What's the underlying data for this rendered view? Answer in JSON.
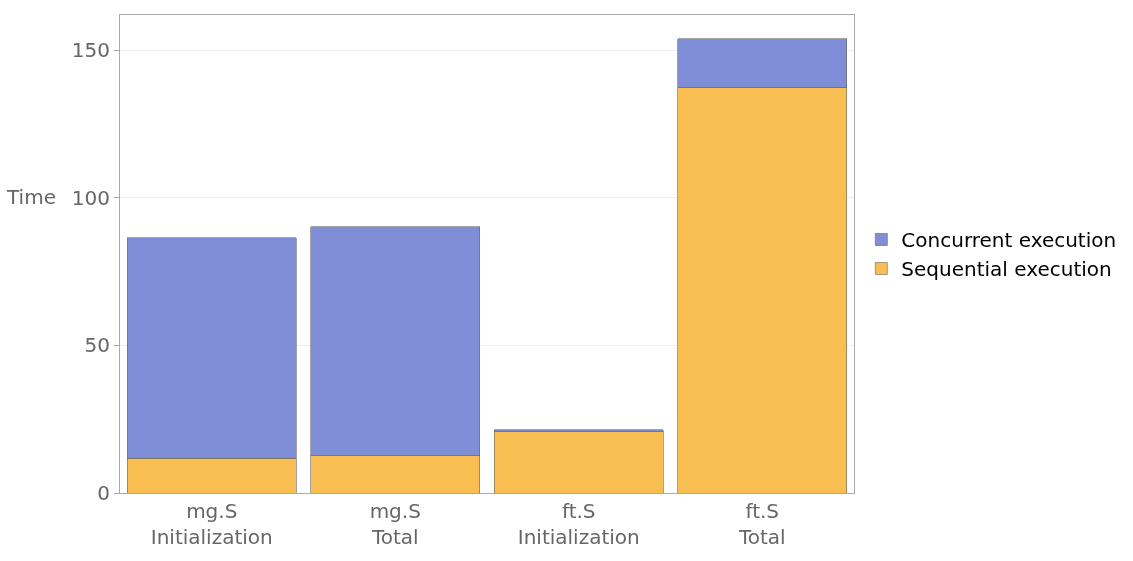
{
  "chart_data": {
    "type": "bar",
    "stacked": true,
    "categories": [
      "mg.S\nInitialization",
      "mg.S\nTotal",
      "ft.S\nInitialization",
      "ft.S\nTotal"
    ],
    "series": [
      {
        "name": "Sequential execution",
        "color": "#f9be52",
        "values": [
          11.7,
          12.7,
          20.7,
          137.6
        ]
      },
      {
        "name": "Concurrent execution",
        "color": "#7f8ed6",
        "values": [
          74.8,
          77.5,
          0.7,
          16.4
        ]
      }
    ],
    "ylabel": "Time",
    "ylim": [
      0,
      162
    ],
    "yticks": [
      0,
      50,
      100,
      150
    ],
    "grid": "y",
    "legend": "right"
  }
}
